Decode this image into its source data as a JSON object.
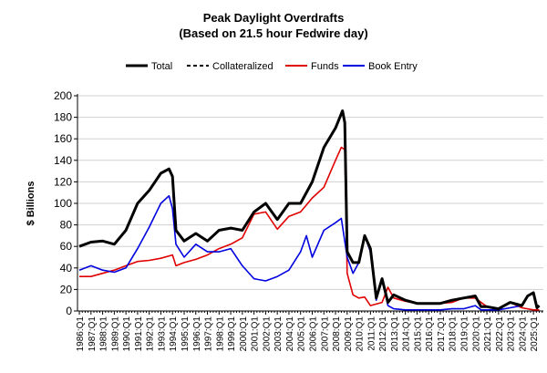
{
  "chart_data": {
    "type": "line",
    "title": "Peak Daylight Overdrafts",
    "subtitle": "(Based on 21.5 hour Fedwire day)",
    "xlabel": "",
    "ylabel": "$ Billions",
    "ylim": [
      0,
      200
    ],
    "yticks": [
      0,
      20,
      40,
      60,
      80,
      100,
      120,
      140,
      160,
      180,
      200
    ],
    "xlim": [
      1985.84,
      2025.85
    ],
    "xtick_labels": [
      "1986:Q1",
      "1987:Q1",
      "1988:Q1",
      "1989:Q1",
      "1990:Q1",
      "1991:Q1",
      "1992:Q1",
      "1993:Q1",
      "1994:Q1",
      "1995:Q1",
      "1996:Q1",
      "1997:Q1",
      "1998:Q1",
      "1999:Q1",
      "2000:Q1",
      "2001:Q1",
      "2002:Q1",
      "2003:Q1",
      "2004:Q1",
      "2005:Q1",
      "2006:Q1",
      "2007:Q1",
      "2008:Q1",
      "2009:Q1",
      "2010:Q1",
      "2011:Q1",
      "2012:Q1",
      "2013:Q1",
      "2014:Q1",
      "2015:Q1",
      "2016:Q1",
      "2017:Q1",
      "2018:Q1",
      "2019:Q1",
      "2020:Q1",
      "2021:Q1",
      "2022:Q1",
      "2023:Q1",
      "2024:Q1",
      "2025:Q1"
    ],
    "grid": true,
    "legend_position": "top",
    "series": [
      {
        "name": "Total",
        "color": "#000000",
        "style": "solid",
        "x": [
          1986,
          1987,
          1988,
          1989,
          1990,
          1991,
          1992,
          1993,
          1993.7,
          1994,
          1994.3,
          1995,
          1996,
          1997,
          1998,
          1999,
          2000,
          2001,
          2002,
          2003,
          2004,
          2005,
          2006,
          2007,
          2008,
          2008.6,
          2008.8,
          2009,
          2009.5,
          2010,
          2010.5,
          2011,
          2011.5,
          2012,
          2012.5,
          2013,
          2014,
          2015,
          2016,
          2017,
          2018,
          2019,
          2020,
          2020.5,
          2021,
          2022,
          2023,
          2024,
          2024.5,
          2025,
          2025.3,
          2025.5
        ],
        "y": [
          60,
          64,
          65,
          62,
          75,
          100,
          112,
          128,
          132,
          125,
          75,
          65,
          72,
          65,
          75,
          77,
          75,
          92,
          100,
          85,
          100,
          100,
          120,
          152,
          170,
          186,
          175,
          55,
          45,
          45,
          70,
          58,
          12,
          30,
          8,
          15,
          10,
          7,
          7,
          7,
          10,
          12,
          14,
          4,
          4,
          2,
          8,
          5,
          14,
          17,
          3,
          5
        ]
      },
      {
        "name": "Collateralized",
        "color": "#000000",
        "style": "dashed",
        "x": [],
        "y": []
      },
      {
        "name": "Funds",
        "color": "#e00000",
        "style": "solid",
        "x": [
          1986,
          1987,
          1988,
          1989,
          1990,
          1991,
          1992,
          1993,
          1994,
          1994.3,
          1995,
          1996,
          1997,
          1998,
          1999,
          2000,
          2001,
          2002,
          2003,
          2004,
          2005,
          2006,
          2007,
          2008,
          2008.5,
          2008.8,
          2009,
          2009.5,
          2010,
          2010.5,
          2011,
          2012,
          2012.5,
          2013,
          2014,
          2015,
          2016,
          2017,
          2018,
          2019,
          2020,
          2021,
          2022,
          2023,
          2024,
          2025,
          2025.5
        ],
        "y": [
          32,
          32,
          35,
          38,
          42,
          46,
          47,
          49,
          52,
          42,
          45,
          48,
          52,
          58,
          62,
          68,
          90,
          92,
          76,
          88,
          92,
          105,
          115,
          140,
          152,
          150,
          35,
          15,
          12,
          13,
          5,
          8,
          22,
          12,
          9,
          7,
          7,
          7,
          8,
          12,
          12,
          4,
          2,
          8,
          3,
          1,
          1
        ]
      },
      {
        "name": "Book Entry",
        "color": "#0000e0",
        "style": "solid",
        "x": [
          1986,
          1987,
          1988,
          1989,
          1990,
          1991,
          1992,
          1993,
          1993.7,
          1994,
          1994.3,
          1995,
          1996,
          1997,
          1998,
          1999,
          2000,
          2001,
          2002,
          2003,
          2004,
          2005,
          2005.5,
          2006,
          2007,
          2008,
          2008.5,
          2009,
          2009.5,
          2010,
          2010.5,
          2011,
          2011.5,
          2012,
          2012.5,
          2013,
          2014,
          2015,
          2016,
          2017,
          2018,
          2019,
          2020,
          2020.5,
          2021,
          2022,
          2023,
          2024,
          2024.5,
          2025,
          2025.3,
          2025.5
        ],
        "y": [
          38,
          42,
          38,
          36,
          40,
          58,
          78,
          100,
          107,
          95,
          62,
          50,
          62,
          55,
          55,
          58,
          42,
          30,
          28,
          32,
          38,
          55,
          70,
          50,
          75,
          82,
          86,
          50,
          35,
          45,
          70,
          55,
          10,
          30,
          5,
          2,
          1,
          1,
          1,
          1,
          2,
          2,
          5,
          1,
          1,
          1,
          3,
          5,
          14,
          17,
          3,
          5
        ]
      }
    ]
  }
}
